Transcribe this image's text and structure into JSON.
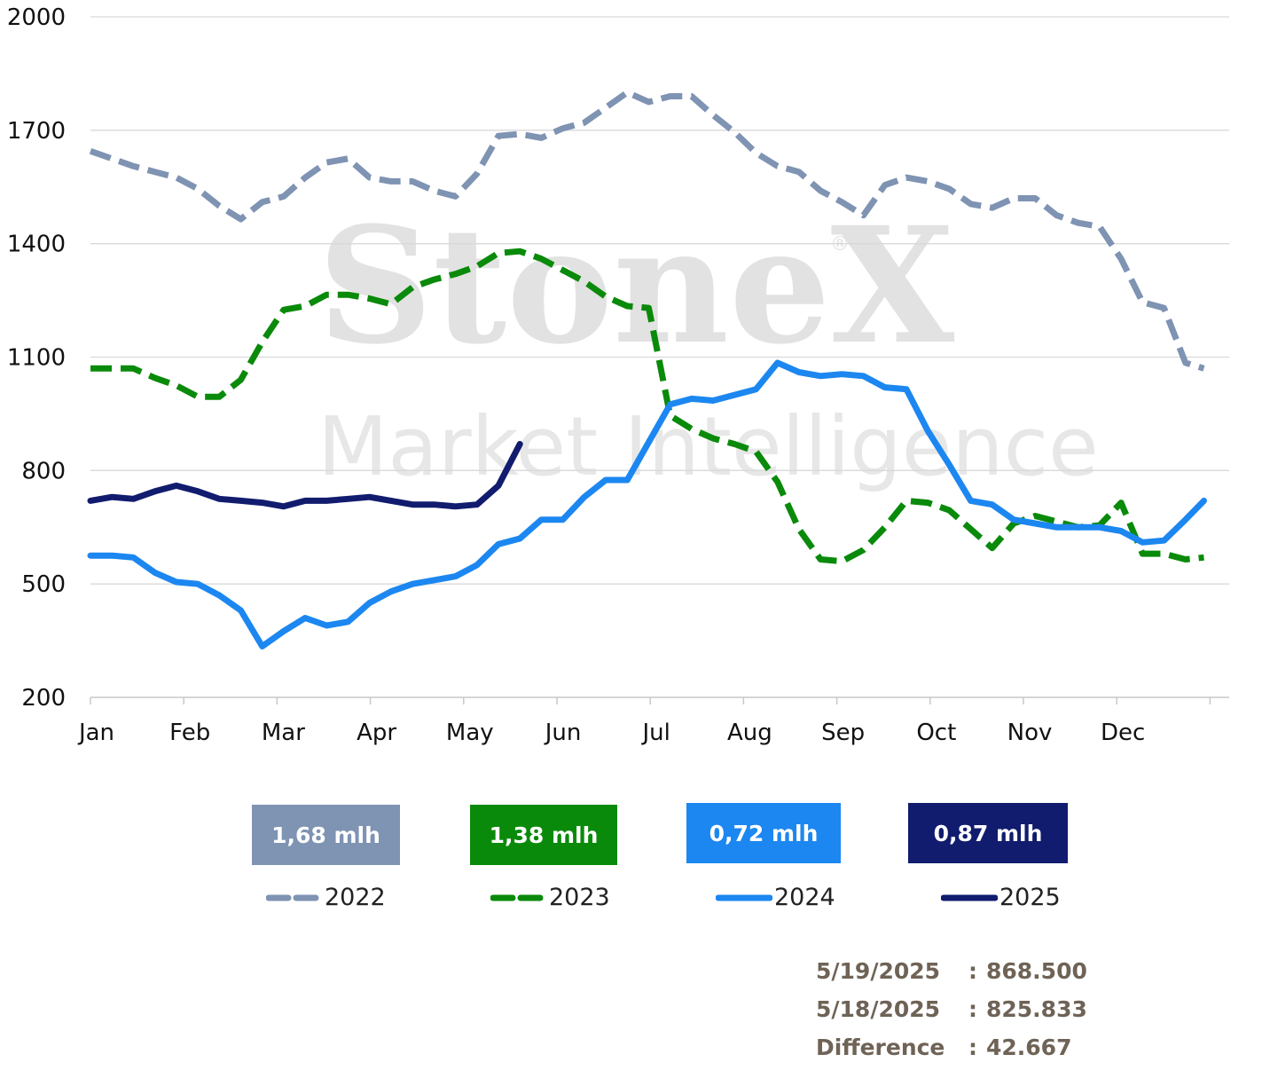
{
  "chart_data": {
    "type": "line",
    "y_ticks": [
      2000,
      1700,
      1400,
      1100,
      800,
      500,
      200
    ],
    "ylim": [
      200,
      2000
    ],
    "x_tick_labels": [
      "Jan",
      "Feb",
      "Mar",
      "Apr",
      "May",
      "Jun",
      "Jul",
      "Aug",
      "Sep",
      "Oct",
      "Nov",
      "Dec"
    ],
    "watermark": {
      "brand": "StoneX",
      "reg": "®",
      "tagline": "Market Intelligence"
    },
    "series": [
      {
        "name": "2022",
        "color": "#7f93b3",
        "dash": "dashed",
        "x": [
          1,
          8,
          15,
          22,
          29,
          36,
          43,
          50,
          57,
          64,
          71,
          78,
          85,
          92,
          99,
          106,
          113,
          120,
          127,
          134,
          141,
          148,
          155,
          162,
          169,
          176,
          183,
          190,
          197,
          204,
          211,
          218,
          225,
          232,
          239,
          246,
          253,
          260,
          267,
          274,
          281,
          288,
          295,
          302,
          309,
          316,
          323,
          330,
          337,
          344,
          351,
          358,
          364
        ],
        "y": [
          1645,
          1625,
          1605,
          1590,
          1575,
          1545,
          1500,
          1465,
          1510,
          1525,
          1575,
          1615,
          1625,
          1575,
          1565,
          1565,
          1540,
          1525,
          1585,
          1685,
          1690,
          1680,
          1705,
          1720,
          1760,
          1800,
          1775,
          1790,
          1790,
          1740,
          1695,
          1640,
          1605,
          1590,
          1540,
          1510,
          1475,
          1555,
          1575,
          1565,
          1545,
          1505,
          1495,
          1520,
          1520,
          1475,
          1455,
          1445,
          1360,
          1245,
          1230,
          1085,
          1070
        ]
      },
      {
        "name": "2023",
        "color": "#0a8a0a",
        "dash": "dashed",
        "x": [
          1,
          8,
          15,
          22,
          29,
          36,
          43,
          50,
          57,
          64,
          71,
          78,
          85,
          92,
          99,
          106,
          113,
          120,
          127,
          134,
          141,
          148,
          155,
          162,
          169,
          176,
          183,
          190,
          197,
          204,
          211,
          218,
          225,
          232,
          239,
          246,
          253,
          260,
          267,
          274,
          281,
          288,
          295,
          302,
          309,
          316,
          323,
          330,
          337,
          344,
          351,
          358,
          364
        ],
        "y": [
          1070,
          1070,
          1070,
          1045,
          1025,
          995,
          995,
          1040,
          1140,
          1225,
          1235,
          1265,
          1265,
          1255,
          1240,
          1285,
          1305,
          1320,
          1340,
          1375,
          1380,
          1360,
          1330,
          1300,
          1260,
          1235,
          1230,
          945,
          910,
          885,
          870,
          850,
          770,
          645,
          565,
          560,
          590,
          650,
          720,
          715,
          695,
          645,
          595,
          660,
          680,
          665,
          650,
          655,
          715,
          580,
          580,
          565,
          570
        ]
      },
      {
        "name": "2024",
        "color": "#1c87f0",
        "dash": "solid",
        "x": [
          1,
          8,
          15,
          22,
          29,
          36,
          43,
          50,
          57,
          64,
          71,
          78,
          85,
          92,
          99,
          106,
          113,
          120,
          127,
          134,
          141,
          148,
          155,
          162,
          169,
          176,
          183,
          190,
          197,
          204,
          211,
          218,
          225,
          232,
          239,
          246,
          253,
          260,
          267,
          274,
          281,
          288,
          295,
          302,
          309,
          316,
          323,
          330,
          337,
          344,
          351,
          358,
          364
        ],
        "y": [
          575,
          575,
          570,
          530,
          505,
          500,
          470,
          430,
          335,
          375,
          410,
          390,
          400,
          450,
          480,
          500,
          510,
          520,
          550,
          605,
          620,
          670,
          670,
          730,
          775,
          775,
          875,
          975,
          990,
          985,
          1000,
          1015,
          1085,
          1060,
          1050,
          1055,
          1050,
          1020,
          1015,
          905,
          815,
          720,
          710,
          670,
          660,
          650,
          650,
          650,
          640,
          610,
          615,
          670,
          720
        ]
      },
      {
        "name": "2025",
        "color": "#111c6e",
        "dash": "solid",
        "x": [
          1,
          8,
          15,
          22,
          29,
          36,
          43,
          50,
          57,
          64,
          71,
          78,
          85,
          92,
          99,
          106,
          113,
          120,
          127,
          134,
          141
        ],
        "y": [
          720,
          730,
          725,
          745,
          760,
          745,
          725,
          720,
          715,
          705,
          720,
          720,
          725,
          730,
          720,
          710,
          710,
          705,
          710,
          760,
          870
        ]
      }
    ]
  },
  "badges": [
    {
      "label": "1,68 mlh",
      "color": "#7f93b3"
    },
    {
      "label": "1,38 mlh",
      "color": "#0a8a0a"
    },
    {
      "label": "0,72 mlh",
      "color": "#1c87f0"
    },
    {
      "label": "0,87 mlh",
      "color": "#111c6e"
    }
  ],
  "legend": [
    {
      "label": "2022",
      "color": "#7f93b3",
      "dash": "dashed"
    },
    {
      "label": "2023",
      "color": "#0a8a0a",
      "dash": "dashed"
    },
    {
      "label": "2024",
      "color": "#1c87f0",
      "dash": "solid"
    },
    {
      "label": "2025",
      "color": "#111c6e",
      "dash": "solid"
    }
  ],
  "info": [
    {
      "key": "5/19/2025",
      "sep": ":",
      "value": "868.500"
    },
    {
      "key": "5/18/2025",
      "sep": ":",
      "value": "825.833"
    },
    {
      "key": "Difference",
      "sep": ":",
      "value": "42.667"
    }
  ]
}
